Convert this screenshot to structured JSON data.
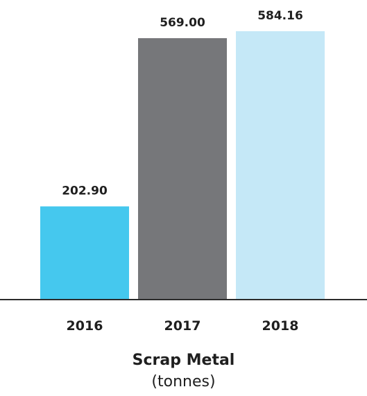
{
  "chart_data": {
    "type": "bar",
    "title": "Scrap Metal",
    "subtitle": "(tonnes)",
    "categories": [
      "2016",
      "2017",
      "2018"
    ],
    "values": [
      202.9,
      569.0,
      584.16
    ],
    "value_labels": [
      "202.90",
      "569.00",
      "584.16"
    ],
    "bar_colors": [
      "#45c8ee",
      "#76777a",
      "#c5e8f7"
    ],
    "axis_color": "#2b2b2b",
    "ylim": [
      0,
      584.16
    ],
    "grid": false,
    "legend": "none"
  }
}
